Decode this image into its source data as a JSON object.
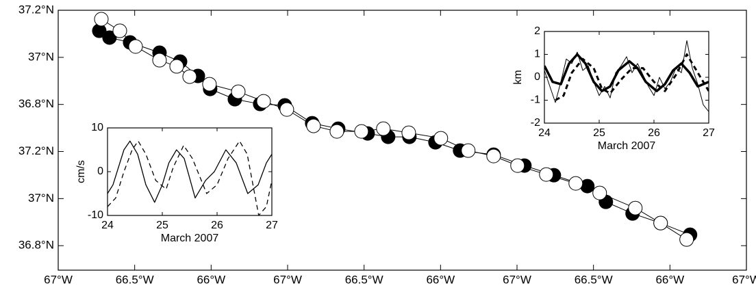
{
  "chart_data": [
    {
      "type": "scatter",
      "connect": true,
      "marker_size": 10,
      "xlim": [
        0,
        9
      ],
      "ylim": [
        -0.52,
        5
      ],
      "xticks": [
        {
          "value": 0,
          "label": "67°W"
        },
        {
          "value": 1,
          "label": "66.5°W"
        },
        {
          "value": 2,
          "label": "66°W"
        },
        {
          "value": 3,
          "label": "67°W"
        },
        {
          "value": 4,
          "label": "66.5°W"
        },
        {
          "value": 5,
          "label": "66°W"
        },
        {
          "value": 6,
          "label": "67°W"
        },
        {
          "value": 7,
          "label": "66.5°W"
        },
        {
          "value": 8,
          "label": "66°W"
        },
        {
          "value": 9,
          "label": "67°W"
        }
      ],
      "yticks": [
        {
          "value": 0,
          "label": "36.8°N"
        },
        {
          "value": 1,
          "label": "37°N"
        },
        {
          "value": 2,
          "label": "37.2°N"
        },
        {
          "value": 3,
          "label": "36.8°N"
        },
        {
          "value": 4,
          "label": "37°N"
        },
        {
          "value": 5,
          "label": "37.2°N"
        }
      ],
      "series": [
        {
          "color": "#000000",
          "x": [
            0.537,
            0.671,
            0.94,
            1.325,
            1.594,
            1.827,
            1.987,
            2.31,
            2.641,
            2.963,
            3.321,
            3.662,
            4.047,
            4.315,
            4.593,
            4.933,
            5.255,
            5.694,
            6.097,
            6.482,
            6.92,
            7.162,
            7.511,
            7.878,
            8.263
          ],
          "values": [
            4.564,
            4.419,
            4.317,
            4.099,
            3.91,
            3.605,
            3.328,
            3.11,
            3.009,
            2.98,
            2.602,
            2.485,
            2.384,
            2.311,
            2.311,
            2.195,
            2.02,
            1.933,
            1.701,
            1.497,
            1.265,
            0.93,
            0.683,
            0.48,
            0.233
          ]
        },
        {
          "color": "#ffffff",
          "x": [
            0.564,
            0.806,
            1.012,
            1.325,
            1.549,
            1.719,
            1.978,
            2.355,
            2.686,
            2.99,
            3.339,
            3.644,
            3.966,
            4.252,
            4.584,
            5.004,
            5.362,
            5.694,
            6.007,
            6.383,
            6.768,
            7.081,
            7.547,
            7.878,
            8.218
          ],
          "values": [
            4.811,
            4.564,
            4.23,
            3.939,
            3.808,
            3.59,
            3.43,
            3.27,
            3.067,
            2.892,
            2.544,
            2.427,
            2.427,
            2.485,
            2.398,
            2.282,
            2.02,
            1.904,
            1.701,
            1.512,
            1.323,
            1.12,
            0.799,
            0.48,
            0.131
          ]
        }
      ]
    },
    {
      "type": "line",
      "ylabel": "cm/s",
      "xlabel": "March 2007",
      "xlim": [
        24,
        27
      ],
      "ylim": [
        -10,
        10
      ],
      "xticks": [
        24,
        25,
        26,
        27
      ],
      "yticks": [
        -10,
        0,
        10
      ],
      "series": [
        {
          "color": "#000000",
          "dash": false,
          "width": 1.3,
          "x": [
            24,
            24.1,
            24.2,
            24.3,
            24.41,
            24.55,
            24.7,
            24.86,
            25.0,
            25.12,
            25.26,
            25.4,
            25.6,
            25.79,
            25.95,
            26.16,
            26.35,
            26.56,
            26.75,
            26.9,
            27
          ],
          "values": [
            -5,
            -3,
            1,
            5,
            7,
            4,
            -3,
            -7,
            -3,
            2,
            5,
            3,
            -6,
            -2,
            0,
            5,
            2,
            -5,
            -3,
            2,
            4
          ]
        },
        {
          "color": "#000000",
          "dash": true,
          "width": 1.3,
          "x": [
            24,
            24.15,
            24.3,
            24.45,
            24.56,
            24.7,
            24.88,
            25.07,
            25.2,
            25.39,
            25.55,
            25.81,
            26.0,
            26.2,
            26.41,
            26.55,
            26.76,
            26.9,
            27
          ],
          "values": [
            -8,
            -6,
            0,
            5,
            7,
            4,
            -2,
            -4,
            1,
            6,
            3,
            -5,
            -3,
            3,
            7,
            4,
            -10,
            -8,
            -2
          ]
        }
      ]
    },
    {
      "type": "line",
      "ylabel": "km",
      "xlabel": "March 2007",
      "xlim": [
        24,
        27
      ],
      "ylim": [
        -2,
        2
      ],
      "xticks": [
        24,
        25,
        26,
        27
      ],
      "yticks": [
        -2,
        -1,
        0,
        1,
        2
      ],
      "series": [
        {
          "color": "#000000",
          "dash": false,
          "width": 3.5,
          "x": [
            24,
            24.15,
            24.3,
            24.45,
            24.6,
            24.75,
            24.9,
            25.05,
            25.2,
            25.35,
            25.55,
            25.7,
            25.85,
            26.05,
            26.2,
            26.35,
            26.5,
            26.65,
            26.8,
            27
          ],
          "values": [
            0.5,
            -0.2,
            -0.3,
            0.6,
            1.0,
            0.6,
            -0.2,
            -0.6,
            -0.4,
            0.3,
            0.7,
            0.4,
            -0.2,
            -0.6,
            -0.3,
            0.3,
            0.6,
            0.2,
            -0.4,
            -0.2
          ]
        },
        {
          "color": "#000000",
          "dash": true,
          "width": 3,
          "x": [
            24.2,
            24.35,
            24.5,
            24.7,
            24.9,
            25.05,
            25.2,
            25.4,
            25.6,
            25.8,
            26.0,
            26.2,
            26.4,
            26.6,
            26.8,
            27
          ],
          "values": [
            -1.0,
            -0.8,
            0.2,
            0.8,
            0.4,
            -0.5,
            -0.7,
            -0.1,
            0.4,
            0.4,
            -0.2,
            -0.6,
            0.1,
            1.0,
            0.2,
            -0.6
          ]
        },
        {
          "color": "#000000",
          "dash": false,
          "width": 1,
          "x": [
            24,
            24.1,
            24.2,
            24.3,
            24.4,
            24.5,
            24.6,
            24.7,
            24.8,
            24.9,
            25.0,
            25.1,
            25.2,
            25.3,
            25.4,
            25.5,
            25.6,
            25.7,
            25.8,
            25.9,
            26.0,
            26.1,
            26.2,
            26.3,
            26.4,
            26.5,
            26.6,
            26.7,
            26.8,
            26.9,
            27
          ],
          "values": [
            0.3,
            -0.4,
            -1.1,
            -0.2,
            0.8,
            0.6,
            1.1,
            0.3,
            0.5,
            -0.2,
            -0.8,
            -0.4,
            -0.9,
            0.2,
            0.5,
            0.9,
            0.2,
            0.6,
            0.1,
            -0.4,
            -0.8,
            0.0,
            -0.5,
            -0.2,
            0.4,
            0.2,
            1.6,
            0.4,
            -0.3,
            -1.2,
            -1.5
          ]
        }
      ]
    }
  ]
}
